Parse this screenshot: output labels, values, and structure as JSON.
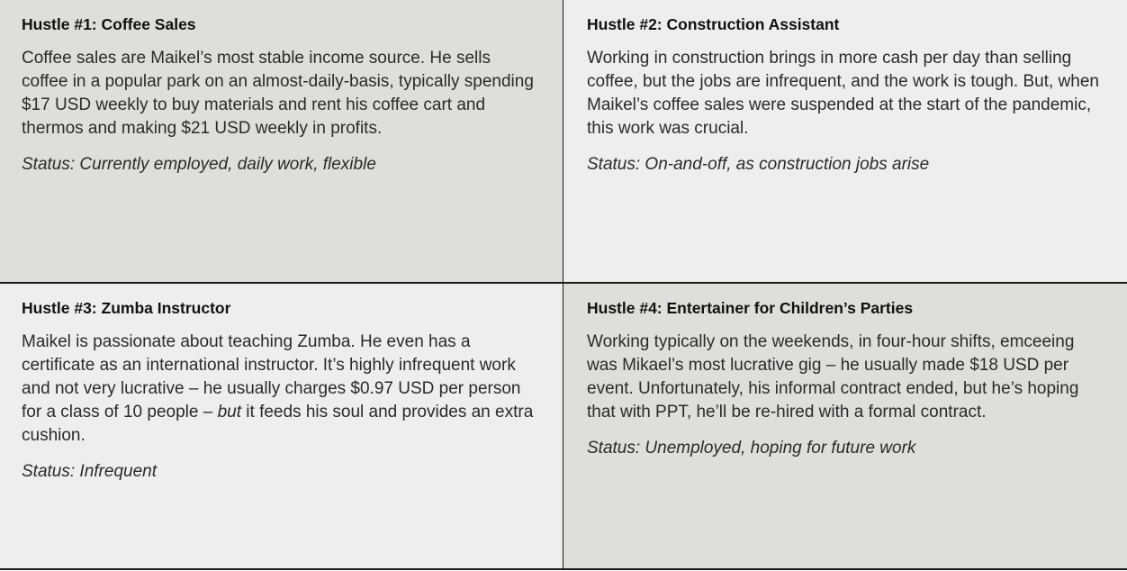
{
  "hustles": [
    {
      "title": "Hustle #1: Coffee Sales",
      "body": "Coffee sales are Maikel’s most stable income source. He sells coffee in a popular park on an almost-daily-basis, typically spending $17 USD weekly to buy materials and rent his coffee cart and thermos and making $21 USD weekly in profits.",
      "status": "Status: Currently employed, daily work, flexible"
    },
    {
      "title": "Hustle #2: Construction Assistant",
      "body": "Working in construction brings in more cash per day than selling coffee, but the jobs are infre­quent, and the work is tough. But, when Maikel’s coffee sales were suspended at the start of the pandemic, this work was crucial.",
      "status": "Status: On-and-off, as construction jobs arise"
    },
    {
      "title": "Hustle #3: Zumba Instructor",
      "body_before": "Maikel is passionate about teaching Zumba. He even has a certificate as an international instruc­tor. It’s highly infrequent work and not very lucra­tive – he usually charges $0.97 USD per person for a class of 10 people – ",
      "body_em": "but",
      "body_after": " it feeds his soul and provides an extra cushion.",
      "status": "Status: Infrequent"
    },
    {
      "title": "Hustle #4: Entertainer for Children’s Parties",
      "body": "Working typically on the weekends, in four-hour shifts, emceeing was Mikael’s most lucrative gig – he usually made $18 USD per event. Unfor­tunately, his informal contract ended, but he’s hop­ing that with PPT, he’ll be re-hired with a formal contract.",
      "status": "Status: Unemployed, hoping for future work"
    }
  ],
  "colors": {
    "dark_cell": "#dededd",
    "light_cell": "#eeeeee",
    "border": "#1a1a1a"
  }
}
